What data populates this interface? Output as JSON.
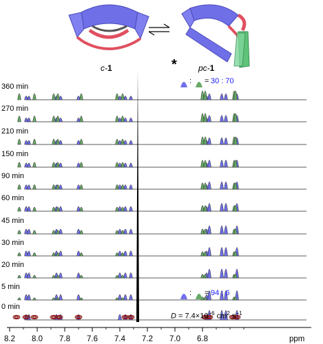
{
  "scheme": {
    "left_label_prefix": "c-",
    "left_label_bold": "1",
    "right_label_prefix": "pc-",
    "right_label_bold": "1"
  },
  "time_labels": [
    "360 min",
    "270 min",
    "210 min",
    "150 min",
    "90 min",
    "60 min",
    "45 min",
    "30 min",
    "20 min",
    "5 min",
    "0 min"
  ],
  "ratios": {
    "top": {
      "equals": "=",
      "sep": ":",
      "value": "30 : 70"
    },
    "bottom": {
      "equals": "=",
      "sep": ":",
      "value": "94 : 6"
    }
  },
  "asterisk": "*",
  "diffusion": {
    "prefix": "D",
    "text": " = 7.4×10",
    "exp": "−6",
    "units_a": " cm",
    "units_exp": "2",
    "units_b": " s",
    "units_exp2": "−1"
  },
  "x_axis": {
    "ticks": [
      "8.2",
      "8.0",
      "7.8",
      "7.6",
      "7.4",
      "7.2",
      "7.0",
      "6.8"
    ],
    "unit": "ppm"
  },
  "colors": {
    "blue_peak": "#7070ee",
    "green_peak": "#66aa66",
    "dosy": "#8b1a1a",
    "ratio_text": "#1a1aff"
  }
}
